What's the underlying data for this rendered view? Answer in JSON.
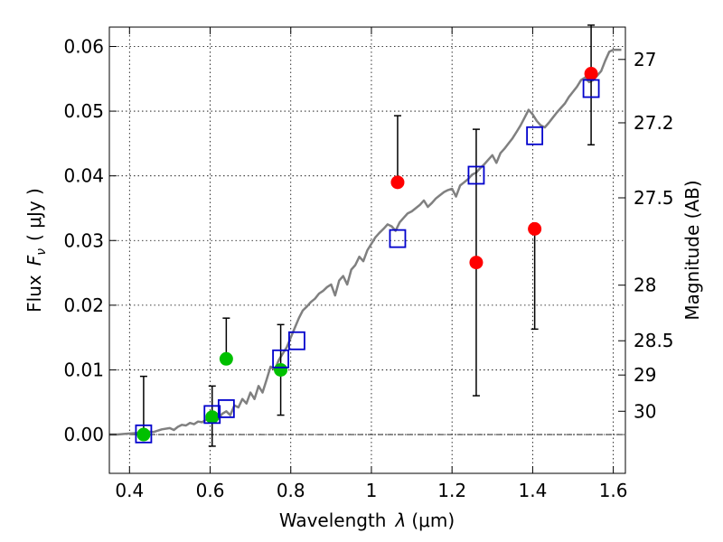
{
  "chart_data": {
    "type": "scatter",
    "xlabel_prefix": "Wavelength",
    "xlabel_symbol": "λ",
    "xlabel_unit": "(μm)",
    "ylabel_prefix": "Flux",
    "ylabel_symbol": "F",
    "ylabel_subscript": "ν",
    "ylabel_unit": "( μJy )",
    "ylabel_right": "Magnitude (AB)",
    "xlim": [
      0.35,
      1.63
    ],
    "ylim": [
      -0.006,
      0.063
    ],
    "grid": true,
    "xticks": [
      0.4,
      0.6,
      0.8,
      1.0,
      1.2,
      1.4,
      1.6
    ],
    "xtick_labels": [
      "0.4",
      "0.6",
      "0.8",
      "1",
      "1.2",
      "1.4",
      "1.6"
    ],
    "yticks": [
      0.0,
      0.01,
      0.02,
      0.03,
      0.04,
      0.05,
      0.06
    ],
    "ytick_labels": [
      "0.00",
      "0.01",
      "0.02",
      "0.03",
      "0.04",
      "0.05",
      "0.06"
    ],
    "right_ticks": [
      {
        "label": "27",
        "flux": 0.058
      },
      {
        "label": "27.2",
        "flux": 0.0482
      },
      {
        "label": "27.5",
        "flux": 0.0366
      },
      {
        "label": "28",
        "flux": 0.0231
      },
      {
        "label": "28.5",
        "flux": 0.0145
      },
      {
        "label": "29",
        "flux": 0.0092
      },
      {
        "label": "30",
        "flux": 0.0036
      }
    ],
    "zero_line": 0.0,
    "sed_model": {
      "color": "#808080",
      "x": [
        0.35,
        0.37,
        0.39,
        0.41,
        0.43,
        0.44,
        0.46,
        0.48,
        0.5,
        0.51,
        0.52,
        0.53,
        0.54,
        0.55,
        0.56,
        0.57,
        0.58,
        0.59,
        0.6,
        0.61,
        0.62,
        0.63,
        0.64,
        0.65,
        0.66,
        0.67,
        0.68,
        0.69,
        0.7,
        0.71,
        0.72,
        0.73,
        0.74,
        0.75,
        0.76,
        0.77,
        0.78,
        0.79,
        0.8,
        0.81,
        0.82,
        0.83,
        0.84,
        0.85,
        0.86,
        0.87,
        0.88,
        0.89,
        0.9,
        0.91,
        0.92,
        0.93,
        0.94,
        0.95,
        0.96,
        0.97,
        0.98,
        0.99,
        1.0,
        1.01,
        1.02,
        1.03,
        1.04,
        1.05,
        1.06,
        1.07,
        1.08,
        1.09,
        1.1,
        1.11,
        1.12,
        1.13,
        1.14,
        1.15,
        1.16,
        1.17,
        1.18,
        1.19,
        1.2,
        1.21,
        1.22,
        1.23,
        1.24,
        1.25,
        1.26,
        1.27,
        1.28,
        1.29,
        1.3,
        1.31,
        1.32,
        1.33,
        1.34,
        1.35,
        1.36,
        1.37,
        1.38,
        1.39,
        1.4,
        1.41,
        1.42,
        1.43,
        1.44,
        1.45,
        1.46,
        1.47,
        1.48,
        1.49,
        1.5,
        1.51,
        1.52,
        1.53,
        1.54,
        1.55,
        1.56,
        1.57,
        1.58,
        1.59,
        1.6,
        1.62
      ],
      "y": [
        0.0,
        0.0,
        0.0001,
        0.0002,
        0.0003,
        0.0005,
        0.0004,
        0.0008,
        0.001,
        0.0007,
        0.0012,
        0.0015,
        0.0014,
        0.0018,
        0.0016,
        0.002,
        0.0019,
        0.0023,
        0.0021,
        0.0028,
        0.0024,
        0.0032,
        0.0036,
        0.003,
        0.0045,
        0.0042,
        0.0055,
        0.0048,
        0.0065,
        0.0055,
        0.0075,
        0.0065,
        0.0085,
        0.0105,
        0.01,
        0.0115,
        0.0125,
        0.0135,
        0.015,
        0.0165,
        0.018,
        0.0192,
        0.0198,
        0.0205,
        0.021,
        0.0218,
        0.0222,
        0.0228,
        0.0232,
        0.0215,
        0.0238,
        0.0245,
        0.0232,
        0.0255,
        0.0262,
        0.0275,
        0.0268,
        0.0285,
        0.0295,
        0.0305,
        0.0312,
        0.0318,
        0.0325,
        0.0322,
        0.0315,
        0.0328,
        0.0335,
        0.0342,
        0.0345,
        0.035,
        0.0355,
        0.0362,
        0.0352,
        0.0358,
        0.0365,
        0.037,
        0.0375,
        0.0378,
        0.038,
        0.0368,
        0.0385,
        0.039,
        0.0395,
        0.0402,
        0.0405,
        0.0412,
        0.0418,
        0.0425,
        0.0432,
        0.042,
        0.0435,
        0.0442,
        0.045,
        0.0458,
        0.0468,
        0.0478,
        0.049,
        0.0502,
        0.0495,
        0.0485,
        0.0478,
        0.0475,
        0.0482,
        0.049,
        0.0498,
        0.0505,
        0.0512,
        0.0522,
        0.053,
        0.0538,
        0.0548,
        0.0552,
        0.0545,
        0.0548,
        0.0555,
        0.0562,
        0.0578,
        0.0592,
        0.0595,
        0.0595
      ]
    },
    "series": [
      {
        "marker": "circle",
        "color": "#00c000",
        "x": [
          0.435,
          0.605,
          0.64,
          0.775
        ],
        "y": [
          0.0,
          0.0027,
          0.0117,
          0.01
        ],
        "yerr_low": [
          0.0,
          0.0045,
          0.0,
          0.007
        ],
        "yerr_high": [
          0.009,
          0.0048,
          0.0063,
          0.007
        ]
      },
      {
        "marker": "circle",
        "color": "#ff0000",
        "x": [
          1.065,
          1.26,
          1.405,
          1.545
        ],
        "y": [
          0.039,
          0.0266,
          0.0318,
          0.0558
        ],
        "yerr_low": [
          0.0,
          0.0206,
          0.0155,
          0.011
        ],
        "yerr_high": [
          0.0103,
          0.0206,
          0.0,
          0.0075
        ]
      },
      {
        "marker": "square",
        "color": "#0000cc",
        "x": [
          0.435,
          0.605,
          0.64,
          0.775,
          0.815,
          1.065,
          1.26,
          1.405,
          1.545
        ],
        "y": [
          0.0001,
          0.0031,
          0.004,
          0.0117,
          0.0145,
          0.0303,
          0.0401,
          0.0462,
          0.0535
        ]
      }
    ]
  }
}
